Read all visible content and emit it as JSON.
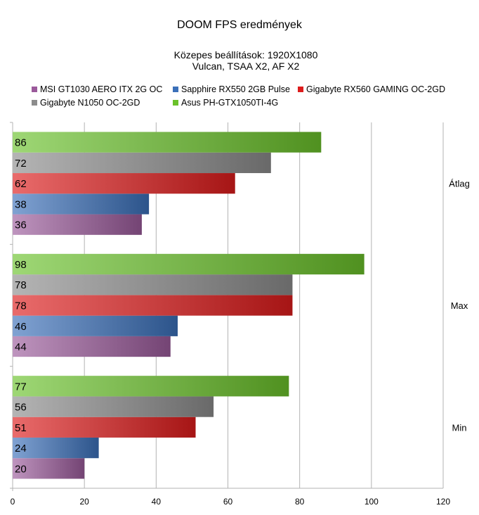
{
  "chart_data": {
    "type": "bar",
    "orientation": "horizontal",
    "title": "DOOM FPS eredmények",
    "subtitle_lines": [
      "Közepes beállítások: 1920X1080",
      "Vulcan, TSAA X2, AF X2"
    ],
    "categories": [
      "Átlag",
      "Max",
      "Min"
    ],
    "series": [
      {
        "name": "MSI GT1030 AERO ITX 2G OC",
        "color": "#9b5a9b",
        "values": [
          36,
          44,
          20
        ]
      },
      {
        "name": "Sapphire RX550 2GB Pulse",
        "color": "#3b70b9",
        "values": [
          38,
          46,
          24
        ]
      },
      {
        "name": "Gigabyte RX560 GAMING OC-2GD",
        "color": "#dd1c1c",
        "values": [
          62,
          78,
          51
        ]
      },
      {
        "name": "Gigabyte N1050 OC-2GD",
        "color": "#8c8c8c",
        "values": [
          72,
          78,
          56
        ]
      },
      {
        "name": "Asus PH-GTX1050TI-4G",
        "color": "#6ac12a",
        "values": [
          86,
          98,
          77
        ]
      }
    ],
    "xlim": [
      0,
      120
    ],
    "x_ticks": [
      0,
      20,
      40,
      60,
      80,
      100,
      120
    ],
    "grid": "vertical",
    "legend_position": "top",
    "data_labels": "inside-left"
  }
}
